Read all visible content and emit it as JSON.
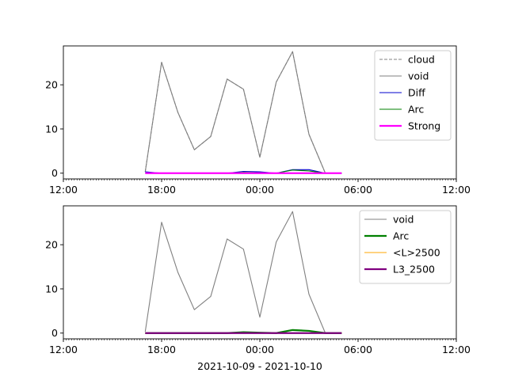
{
  "chart_data": [
    {
      "type": "line",
      "title": "",
      "xlabel": "",
      "ylabel": "",
      "x_range": [
        "12:00",
        "12:00"
      ],
      "ylim": [
        -1.3,
        28.8
      ],
      "y_ticks": [
        0,
        10,
        20
      ],
      "x_tick_labels": [
        "12:00",
        "18:00",
        "00:00",
        "06:00",
        "12:00"
      ],
      "x": [
        "17:00",
        "18:00",
        "19:00",
        "20:00",
        "21:00",
        "22:00",
        "23:00",
        "00:00",
        "01:00",
        "02:00",
        "03:00",
        "04:00",
        "05:00"
      ],
      "legend_position": "upper right",
      "series": [
        {
          "name": "cloud",
          "color": "#808080",
          "style": "dashed",
          "values": [
            0.3,
            25.1,
            13.7,
            5.3,
            8.3,
            21.3,
            19.0,
            3.6,
            20.6,
            27.5,
            8.8,
            0.0,
            0.0
          ]
        },
        {
          "name": "void",
          "color": "#808080",
          "style": "solid",
          "values": [
            0.3,
            25.1,
            13.7,
            5.3,
            8.3,
            21.3,
            19.0,
            3.6,
            20.6,
            27.5,
            8.8,
            0.0,
            0.0
          ]
        },
        {
          "name": "Diff",
          "color": "#0000cc",
          "style": "solid",
          "values": [
            0.3,
            0.0,
            0.0,
            0.0,
            0.0,
            0.0,
            0.4,
            0.3,
            0.0,
            0.8,
            0.8,
            0.0,
            0.0
          ]
        },
        {
          "name": "Arc",
          "color": "#008000",
          "style": "solid",
          "values": [
            0.0,
            0.0,
            0.0,
            0.0,
            0.0,
            0.0,
            0.2,
            0.1,
            0.0,
            0.7,
            0.5,
            0.0,
            0.0
          ]
        },
        {
          "name": "Strong",
          "color": "#ff00ff",
          "style": "solid-thick",
          "values": [
            0.0,
            0.0,
            0.0,
            0.0,
            0.0,
            0.0,
            0.0,
            0.0,
            0.0,
            0.0,
            0.0,
            0.0,
            0.0
          ]
        }
      ]
    },
    {
      "type": "line",
      "title": "",
      "xlabel": "2021-10-09 - 2021-10-10",
      "ylabel": "",
      "x_range": [
        "12:00",
        "12:00"
      ],
      "ylim": [
        -1.3,
        28.8
      ],
      "y_ticks": [
        0,
        10,
        20
      ],
      "x_tick_labels": [
        "12:00",
        "18:00",
        "00:00",
        "06:00",
        "12:00"
      ],
      "x": [
        "17:00",
        "18:00",
        "19:00",
        "20:00",
        "21:00",
        "22:00",
        "23:00",
        "00:00",
        "01:00",
        "02:00",
        "03:00",
        "04:00",
        "05:00"
      ],
      "legend_position": "upper right",
      "series": [
        {
          "name": "void",
          "color": "#808080",
          "style": "solid",
          "values": [
            0.3,
            25.1,
            13.7,
            5.3,
            8.3,
            21.3,
            19.0,
            3.6,
            20.6,
            27.5,
            8.8,
            0.0,
            0.0
          ]
        },
        {
          "name": "Arc",
          "color": "#008000",
          "style": "solid-thick",
          "values": [
            0.0,
            0.0,
            0.0,
            0.0,
            0.0,
            0.0,
            0.2,
            0.1,
            0.0,
            0.7,
            0.5,
            0.0,
            0.0
          ]
        },
        {
          "name": "<L>2500",
          "color": "#ffa500",
          "style": "solid",
          "values": [
            0.0,
            0.0,
            0.0,
            0.0,
            0.0,
            0.0,
            0.0,
            0.0,
            0.0,
            0.0,
            0.0,
            0.0,
            0.0
          ]
        },
        {
          "name": "L3_2500",
          "color": "#800080",
          "style": "solid-thick",
          "values": [
            0.0,
            0.0,
            0.0,
            0.0,
            0.0,
            0.0,
            0.0,
            0.0,
            0.0,
            0.0,
            0.0,
            0.0,
            0.0
          ]
        }
      ]
    }
  ]
}
